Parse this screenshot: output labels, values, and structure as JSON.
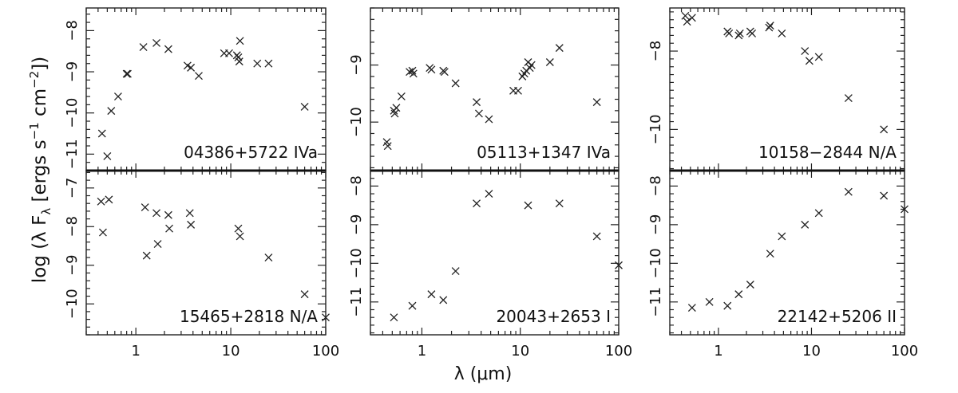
{
  "figure": {
    "ylabel": "log (λ F_λ [ergs s^-1 cm^-2])",
    "xlabel": "λ (μm)"
  },
  "chart_data": [
    {
      "type": "scatter",
      "label": "04386+5722 IVa",
      "xlog": true,
      "xlim": [
        0.3,
        100
      ],
      "ylim": [
        -11.4,
        -7.45
      ],
      "yticks": [
        -11,
        -10,
        -9,
        -8
      ],
      "yticklabels": [
        "−11",
        "−10",
        "−9",
        "−8"
      ],
      "xticklabels": [],
      "marker": "x",
      "points": [
        [
          0.44,
          -10.5
        ],
        [
          0.5,
          -11.05
        ],
        [
          0.55,
          -9.95
        ],
        [
          0.65,
          -9.6
        ],
        [
          0.8,
          -9.05
        ],
        [
          0.82,
          -9.05
        ],
        [
          1.2,
          -8.4
        ],
        [
          1.65,
          -8.3
        ],
        [
          2.2,
          -8.45
        ],
        [
          3.5,
          -8.85
        ],
        [
          3.8,
          -8.9
        ],
        [
          4.6,
          -9.1
        ],
        [
          8.5,
          -8.55
        ],
        [
          9.6,
          -8.55
        ],
        [
          11.6,
          -8.6
        ],
        [
          12.0,
          -8.65
        ],
        [
          12.3,
          -8.75
        ],
        [
          12.5,
          -8.25
        ],
        [
          19,
          -8.8
        ],
        [
          25,
          -8.8
        ],
        [
          60,
          -9.85
        ]
      ]
    },
    {
      "type": "scatter",
      "label": "05113+1347 IVa",
      "xlog": true,
      "xlim": [
        0.3,
        100
      ],
      "ylim": [
        -10.85,
        -8.0
      ],
      "yticks": [
        -10,
        -9
      ],
      "yticklabels": [
        "−10",
        "−9"
      ],
      "xticklabels": [],
      "marker": "x",
      "points": [
        [
          0.44,
          -10.35
        ],
        [
          0.45,
          -10.42
        ],
        [
          0.52,
          -9.8
        ],
        [
          0.53,
          -9.85
        ],
        [
          0.55,
          -9.75
        ],
        [
          0.62,
          -9.55
        ],
        [
          0.75,
          -9.12
        ],
        [
          0.8,
          -9.1
        ],
        [
          0.82,
          -9.15
        ],
        [
          1.2,
          -9.05
        ],
        [
          1.25,
          -9.08
        ],
        [
          1.65,
          -9.1
        ],
        [
          1.7,
          -9.12
        ],
        [
          2.2,
          -9.32
        ],
        [
          3.6,
          -9.65
        ],
        [
          3.8,
          -9.85
        ],
        [
          4.8,
          -9.95
        ],
        [
          8.5,
          -9.45
        ],
        [
          9.5,
          -9.45
        ],
        [
          10.5,
          -9.2
        ],
        [
          11.0,
          -9.15
        ],
        [
          11.5,
          -9.1
        ],
        [
          12.0,
          -8.95
        ],
        [
          12.5,
          -9.05
        ],
        [
          13.0,
          -9.0
        ],
        [
          20,
          -8.95
        ],
        [
          25,
          -8.7
        ],
        [
          60,
          -9.65
        ]
      ]
    },
    {
      "type": "scatter",
      "label": "10158−2844 N/A",
      "xlog": true,
      "xlim": [
        0.3,
        100
      ],
      "ylim": [
        -11.05,
        -6.9
      ],
      "yticks": [
        -10,
        -8
      ],
      "yticklabels": [
        "−10",
        "−8"
      ],
      "xticklabels": [],
      "marker": "x",
      "points": [
        [
          0.44,
          -7.1
        ],
        [
          0.46,
          -7.25
        ],
        [
          0.52,
          -7.15
        ],
        [
          1.25,
          -7.5
        ],
        [
          1.3,
          -7.55
        ],
        [
          1.65,
          -7.6
        ],
        [
          1.7,
          -7.55
        ],
        [
          2.2,
          -7.5
        ],
        [
          2.3,
          -7.55
        ],
        [
          3.5,
          -7.4
        ],
        [
          3.6,
          -7.35
        ],
        [
          4.8,
          -7.55
        ],
        [
          8.5,
          -8.0
        ],
        [
          9.5,
          -8.25
        ],
        [
          12,
          -8.15
        ],
        [
          25,
          -9.2
        ],
        [
          60,
          -10.0
        ]
      ]
    },
    {
      "type": "scatter",
      "label": "15465+2818 N/A",
      "xlog": true,
      "xlim": [
        0.3,
        100
      ],
      "ylim": [
        -10.8,
        -6.55
      ],
      "yticks": [
        -10,
        -9,
        -8,
        -7
      ],
      "yticklabels": [
        "−10",
        "−9",
        "−8",
        "−7"
      ],
      "xticklabels": [
        "1",
        "10",
        "100"
      ],
      "marker": "x",
      "points": [
        [
          0.43,
          -7.35
        ],
        [
          0.45,
          -8.15
        ],
        [
          0.52,
          -7.3
        ],
        [
          1.25,
          -7.5
        ],
        [
          1.3,
          -8.75
        ],
        [
          1.65,
          -7.65
        ],
        [
          1.7,
          -8.45
        ],
        [
          2.2,
          -7.7
        ],
        [
          2.25,
          -8.05
        ],
        [
          3.7,
          -7.65
        ],
        [
          3.8,
          -7.95
        ],
        [
          12,
          -8.05
        ],
        [
          12.5,
          -8.25
        ],
        [
          25,
          -8.8
        ],
        [
          60,
          -9.75
        ],
        [
          100,
          -10.35
        ]
      ]
    },
    {
      "type": "scatter",
      "label": "20043+2653 I",
      "xlog": true,
      "xlim": [
        0.3,
        100
      ],
      "ylim": [
        -11.85,
        -7.6
      ],
      "yticks": [
        -11,
        -10,
        -9,
        -8
      ],
      "yticklabels": [
        "−11",
        "−10",
        "−9",
        "−8"
      ],
      "xticklabels": [
        "1",
        "10",
        "100"
      ],
      "marker": "x",
      "points": [
        [
          0.52,
          -11.4
        ],
        [
          0.8,
          -11.1
        ],
        [
          1.25,
          -10.8
        ],
        [
          1.65,
          -10.95
        ],
        [
          2.2,
          -10.2
        ],
        [
          3.6,
          -8.45
        ],
        [
          4.8,
          -8.2
        ],
        [
          12,
          -8.5
        ],
        [
          25,
          -8.45
        ],
        [
          60,
          -9.3
        ],
        [
          100,
          -10.05
        ]
      ]
    },
    {
      "type": "scatter",
      "label": "22142+5206 II",
      "xlog": true,
      "xlim": [
        0.3,
        100
      ],
      "ylim": [
        -11.85,
        -7.6
      ],
      "yticks": [
        -11,
        -10,
        -9,
        -8
      ],
      "yticklabels": [
        "−11",
        "−10",
        "−9",
        "−8"
      ],
      "xticklabels": [
        "1",
        "10",
        "100"
      ],
      "marker": "x",
      "points": [
        [
          0.52,
          -11.15
        ],
        [
          0.8,
          -11.0
        ],
        [
          1.25,
          -11.1
        ],
        [
          1.65,
          -10.8
        ],
        [
          2.2,
          -10.55
        ],
        [
          3.6,
          -9.75
        ],
        [
          4.8,
          -9.3
        ],
        [
          8.5,
          -9.0
        ],
        [
          12,
          -8.7
        ],
        [
          25,
          -8.15
        ],
        [
          60,
          -8.25
        ],
        [
          100,
          -8.6
        ]
      ]
    }
  ]
}
